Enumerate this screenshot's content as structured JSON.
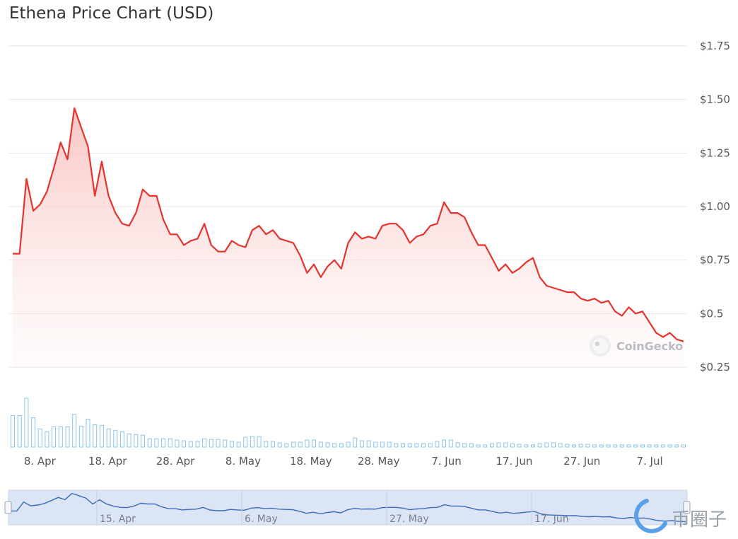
{
  "title": "Ethena Price Chart (USD)",
  "watermark": "CoinGecko",
  "brand_watermark": "币圈子",
  "colors": {
    "line": "#e3342f",
    "area": "#f7c6c4",
    "volume": "#8ec3e8",
    "navigator_fill": "#dbe5f5",
    "navigator_line": "#3b6cb7",
    "grid": "#e6e6e6"
  },
  "chart_data": {
    "type": "line",
    "title": "Ethena Price Chart (USD)",
    "xlabel": "",
    "ylabel": "",
    "ylim": [
      0.25,
      1.75
    ],
    "y_ticks": [
      "$1.75",
      "$1.50",
      "$1.25",
      "$1.00",
      "$0.75",
      "$0.5",
      "$0.25"
    ],
    "y_tick_values": [
      1.75,
      1.5,
      1.25,
      1.0,
      0.75,
      0.5,
      0.25
    ],
    "x_ticks": [
      "8. Apr",
      "18. Apr",
      "28. Apr",
      "8. May",
      "18. May",
      "28. May",
      "7. Jun",
      "17. Jun",
      "27. Jun",
      "7. Jul"
    ],
    "x_tick_days": [
      4,
      14,
      24,
      34,
      44,
      54,
      64,
      74,
      84,
      94
    ],
    "x_range_days": [
      0,
      99
    ],
    "series": [
      {
        "values": [
          0.78,
          0.78,
          1.13,
          0.98,
          1.01,
          1.07,
          1.18,
          1.3,
          1.22,
          1.46,
          1.37,
          1.28,
          1.05,
          1.21,
          1.05,
          0.97,
          0.92,
          0.91,
          0.97,
          1.08,
          1.05,
          1.05,
          0.94,
          0.87,
          0.87,
          0.82,
          0.84,
          0.85,
          0.92,
          0.82,
          0.79,
          0.79,
          0.84,
          0.82,
          0.81,
          0.89,
          0.91,
          0.87,
          0.89,
          0.85,
          0.84,
          0.83,
          0.77,
          0.69,
          0.73,
          0.67,
          0.72,
          0.75,
          0.71,
          0.83,
          0.88,
          0.85,
          0.86,
          0.85,
          0.91,
          0.92,
          0.92,
          0.89,
          0.83,
          0.86,
          0.87,
          0.91,
          0.92,
          1.02,
          0.97,
          0.97,
          0.95,
          0.88,
          0.82,
          0.82,
          0.76,
          0.7,
          0.73,
          0.69,
          0.71,
          0.74,
          0.76,
          0.67,
          0.63,
          0.62,
          0.61,
          0.6,
          0.6,
          0.57,
          0.56,
          0.57,
          0.55,
          0.56,
          0.51,
          0.49,
          0.53,
          0.5,
          0.51,
          0.46,
          0.41,
          0.39,
          0.41,
          0.38,
          0.37
        ]
      }
    ],
    "volume": [
      45,
      45,
      70,
      42,
      26,
      22,
      29,
      29,
      29,
      47,
      30,
      40,
      32,
      31,
      26,
      24,
      22,
      19,
      18,
      17,
      12,
      12,
      12,
      12,
      10,
      9,
      8,
      8,
      12,
      11,
      11,
      10,
      8,
      7,
      14,
      15,
      15,
      8,
      8,
      6,
      5,
      7,
      7,
      10,
      10,
      7,
      6,
      5,
      5,
      7,
      13,
      9,
      9,
      7,
      7,
      7,
      5,
      5,
      5,
      5,
      5,
      5,
      8,
      10,
      10,
      6,
      5,
      5,
      3,
      3,
      5,
      6,
      6,
      5,
      4,
      3,
      3,
      5,
      6,
      6,
      5,
      4,
      3,
      4,
      4,
      3,
      3,
      3,
      3,
      3,
      3,
      3,
      3,
      3,
      3,
      3,
      3,
      3,
      3
    ],
    "navigator_ticks": [
      "15. Apr",
      "6. May",
      "27. May",
      "17. Jun"
    ]
  }
}
